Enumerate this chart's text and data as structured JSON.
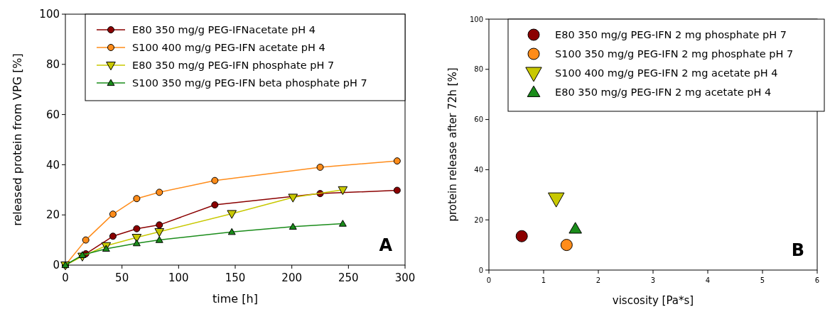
{
  "chart_data": [
    {
      "type": "line",
      "xlabel": "time [h]",
      "ylabel": "released protein from VPG [%]",
      "xlim": [
        0,
        300
      ],
      "xticks": [
        0,
        50,
        100,
        150,
        200,
        250,
        300
      ],
      "ylim": [
        0,
        100
      ],
      "yticks": [
        0,
        20,
        40,
        60,
        80,
        100
      ],
      "grid": false,
      "legend": "top right",
      "line_style": "solid",
      "annotations": [
        "A"
      ],
      "series": [
        {
          "name": "E80 350 mg/g PEG-IFNacetate pH 4",
          "color": "#8b0000",
          "marker": "circle",
          "x": [
            0,
            18,
            42,
            63,
            83,
            132,
            225,
            293
          ],
          "values": [
            0,
            4.5,
            11.5,
            14.5,
            16,
            24,
            28.5,
            29.8
          ]
        },
        {
          "name": "S100 400 mg/g PEG-IFN acetate pH 4",
          "color": "#ff8c1a",
          "marker": "circle",
          "x": [
            0,
            18,
            42,
            63,
            83,
            132,
            225,
            293
          ],
          "values": [
            0,
            10,
            20.3,
            26.5,
            29,
            33.7,
            39,
            41.5
          ]
        },
        {
          "name": "E80 350 mg/g PEG-IFN phosphate pH 7",
          "color": "#c8c800",
          "marker": "triangle-down",
          "x": [
            0,
            15,
            36,
            63,
            83,
            147,
            201,
            245
          ],
          "values": [
            0,
            3.5,
            7.7,
            11,
            13.3,
            20.5,
            27,
            30
          ]
        },
        {
          "name": "S100 350 mg/g PEG-IFN beta phosphate pH 7",
          "color": "#1a8c1a",
          "marker": "triangle",
          "x": [
            0,
            15,
            36,
            63,
            83,
            147,
            201,
            245
          ],
          "values": [
            0,
            4,
            6.5,
            8.7,
            10,
            13.2,
            15.3,
            16.5
          ]
        }
      ]
    },
    {
      "type": "scatter",
      "xlabel": "viscosity [Pa*s]",
      "ylabel": "protein release after 72h [%]",
      "xlim": [
        0,
        6
      ],
      "xticks": [
        0,
        1,
        2,
        3,
        4,
        5,
        6
      ],
      "ylim": [
        0,
        100
      ],
      "yticks": [
        0,
        20,
        40,
        60,
        80,
        100
      ],
      "grid": false,
      "legend": "top right",
      "annotations": [
        "B"
      ],
      "series": [
        {
          "name": "E80 350 mg/g PEG-IFN 2 mg phosphate pH 7",
          "color": "#8b0000",
          "marker": "circle",
          "x": [
            0.6
          ],
          "values": [
            13.5
          ]
        },
        {
          "name": "S100 350 mg/g PEG-IFN 2 mg phosphate pH 7",
          "color": "#ff8c1a",
          "marker": "circle",
          "x": [
            1.42
          ],
          "values": [
            10
          ]
        },
        {
          "name": "S100 400 mg/g PEG-IFN 2 mg acetate pH 4",
          "color": "#c8c800",
          "marker": "triangle-down",
          "x": [
            1.23
          ],
          "values": [
            28.5
          ]
        },
        {
          "name": "E80 350 mg/g PEG-IFN 2 mg acetate pH 4",
          "color": "#1a8c1a",
          "marker": "triangle",
          "x": [
            1.58
          ],
          "values": [
            16.5
          ]
        }
      ]
    }
  ]
}
